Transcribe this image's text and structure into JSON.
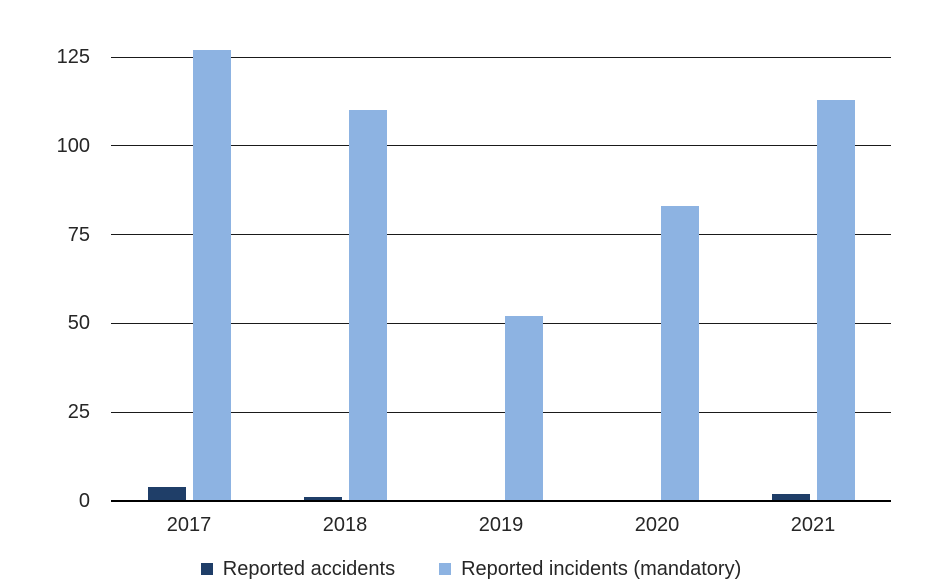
{
  "chart_data": {
    "type": "bar",
    "categories": [
      "2017",
      "2018",
      "2019",
      "2020",
      "2021"
    ],
    "series": [
      {
        "name": "Reported accidents",
        "color": "#1F3E68",
        "values": [
          4,
          1,
          0,
          0,
          2
        ]
      },
      {
        "name": "Reported incidents (mandatory)",
        "color": "#8DB3E2",
        "values": [
          127,
          110,
          52,
          83,
          113
        ]
      }
    ],
    "yticks": [
      0,
      25,
      50,
      75,
      100,
      125
    ],
    "ylim": [
      0,
      125
    ],
    "grid": "horizontal",
    "legend_position": "bottom",
    "colors": {
      "background": "#FFFFFF",
      "gridline": "#1A1A1A",
      "axis": "#000000",
      "text": "#262626"
    }
  }
}
